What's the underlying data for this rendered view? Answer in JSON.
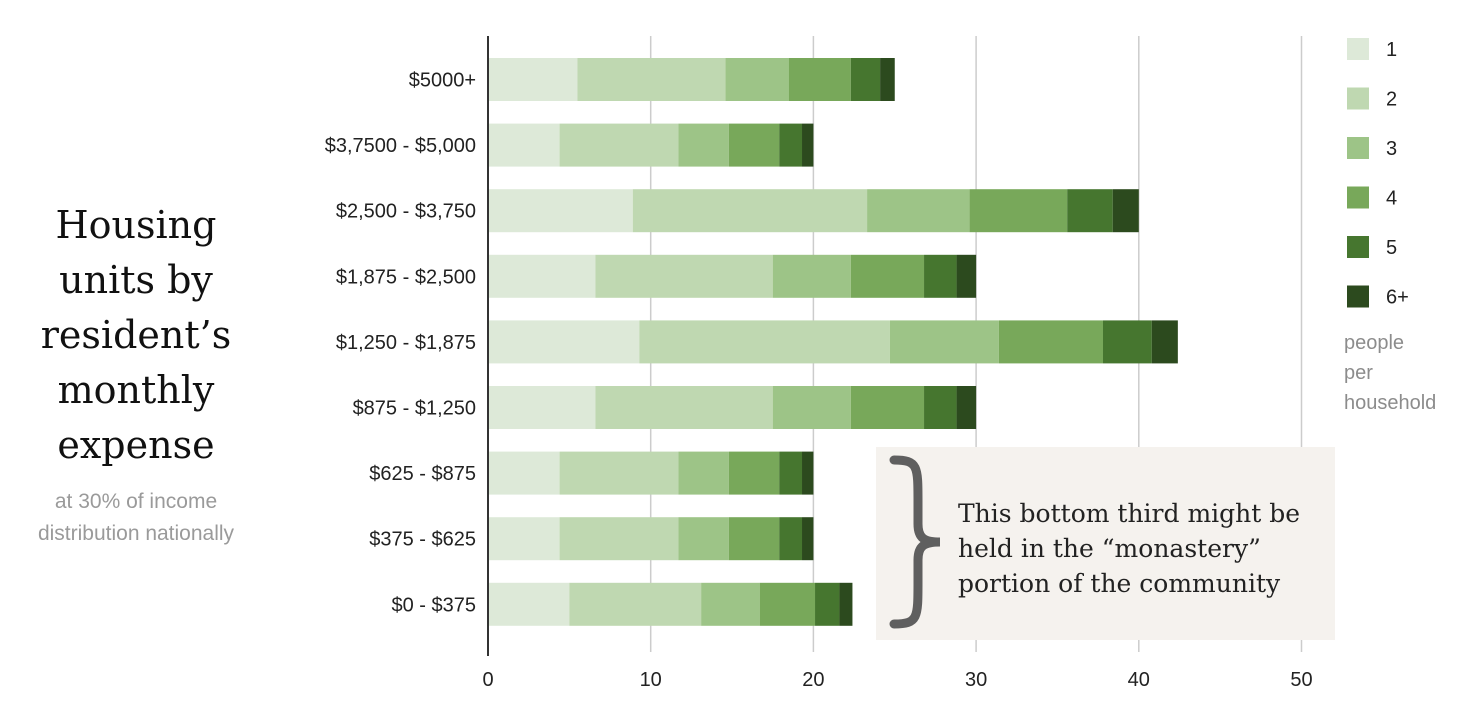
{
  "title_lines": [
    "Housing",
    "units by",
    "resident’s",
    "monthly",
    "expense"
  ],
  "subtitle_lines": [
    "at 30% of income",
    "distribution nationally"
  ],
  "legend_caption_lines": [
    "people",
    "per",
    "household"
  ],
  "note_lines": [
    "This bottom third might be",
    "held in the “monastery”",
    "portion of the community"
  ],
  "colors": [
    "#dde9d8",
    "#bfd8b1",
    "#9dc487",
    "#78a85a",
    "#46762f",
    "#2c4a1e"
  ],
  "chart_data": {
    "type": "bar",
    "orientation": "horizontal",
    "stacked": true,
    "categories": [
      "$5000+",
      "$3,7500 - $5,000",
      "$2,500 - $3,750",
      "$1,875 - $2,500",
      "$1,250 - $1,875",
      "$875 - $1,250",
      "$625 - $875",
      "$375 - $625",
      "$0 - $375"
    ],
    "series": [
      {
        "name": "1",
        "values": [
          5.5,
          4.4,
          8.9,
          6.6,
          9.3,
          6.6,
          4.4,
          4.4,
          5.0
        ]
      },
      {
        "name": "2",
        "values": [
          9.1,
          7.3,
          14.4,
          10.9,
          15.4,
          10.9,
          7.3,
          7.3,
          8.1
        ]
      },
      {
        "name": "3",
        "values": [
          3.9,
          3.1,
          6.3,
          4.8,
          6.7,
          4.8,
          3.1,
          3.1,
          3.6
        ]
      },
      {
        "name": "4",
        "values": [
          3.8,
          3.1,
          6.0,
          4.5,
          6.4,
          4.5,
          3.1,
          3.1,
          3.4
        ]
      },
      {
        "name": "5",
        "values": [
          1.8,
          1.4,
          2.8,
          2.0,
          3.0,
          2.0,
          1.4,
          1.4,
          1.5
        ]
      },
      {
        "name": "6+",
        "values": [
          0.9,
          0.7,
          1.6,
          1.2,
          1.6,
          1.2,
          0.7,
          0.7,
          0.8
        ]
      }
    ],
    "xlim": [
      0,
      52
    ],
    "xticks": [
      0,
      10,
      20,
      30,
      40,
      50
    ],
    "grid": "vertical",
    "legend_position": "right"
  }
}
